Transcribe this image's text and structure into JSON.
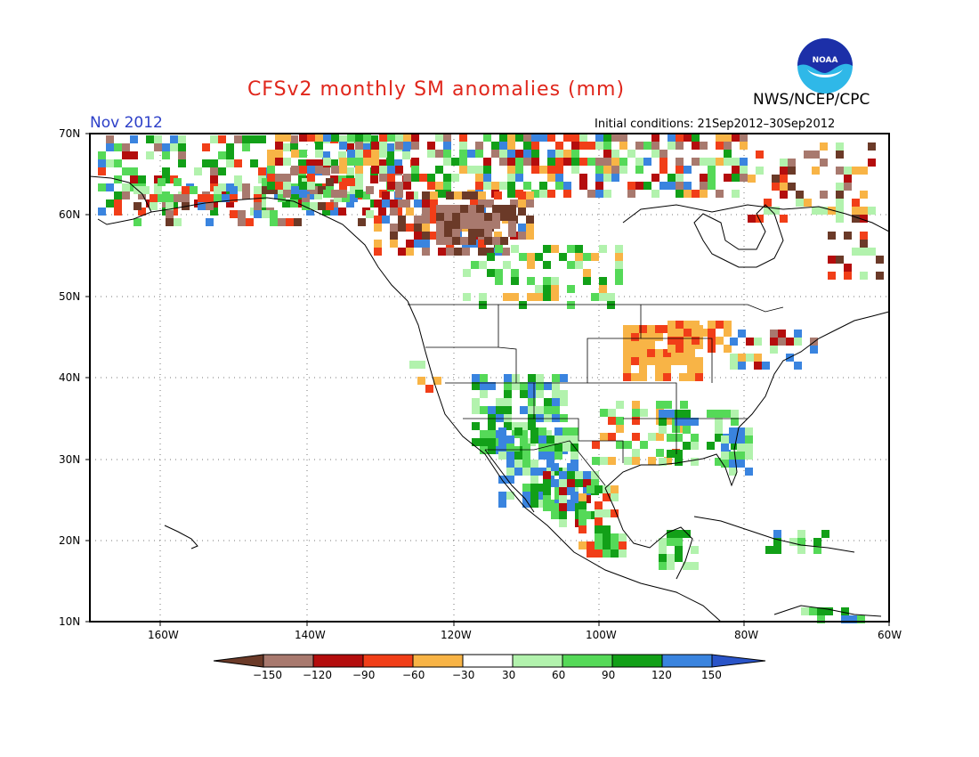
{
  "title": "CFSv2 monthly SM anomalies (mm)",
  "forecast_month": "Nov 2012",
  "initial_conditions": "Initial conditions: 21Sep2012–30Sep2012",
  "agency": "NWS/NCEP/CPC",
  "logo_text": "NOAA",
  "lat_labels": [
    "70N",
    "60N",
    "50N",
    "40N",
    "30N",
    "20N",
    "10N"
  ],
  "lon_labels": [
    "160W",
    "140W",
    "120W",
    "100W",
    "80W",
    "60W"
  ],
  "legend": {
    "labels": [
      "−150",
      "−120",
      "−90",
      "−60",
      "−30",
      "30",
      "60",
      "90",
      "120",
      "150"
    ],
    "colors": [
      "#6b3a28",
      "#a8796e",
      "#b40d0d",
      "#f13e18",
      "#f8b446",
      "#ffffff",
      "#b2f2ad",
      "#55d958",
      "#12a018",
      "#3a84df",
      "#2a54c8"
    ]
  },
  "anomaly_regions": [
    {
      "region": "Mexico / Sierra Madre",
      "category": "120 to 150"
    },
    {
      "region": "Arizona / New Mexico",
      "category": "60 to 150"
    },
    {
      "region": "Upper Midwest (Wisconsin / Iowa)",
      "category": "-60 to -30"
    },
    {
      "region": "Southeast US",
      "category": "30 to 90"
    },
    {
      "region": "Western Canada (British Columbia / Alberta)",
      "category": "-150 to -90"
    },
    {
      "region": "Texas Gulf Coast",
      "category": "-90 to -30"
    },
    {
      "region": "Alaska",
      "category": "-120 to 90 (mixed)"
    }
  ]
}
